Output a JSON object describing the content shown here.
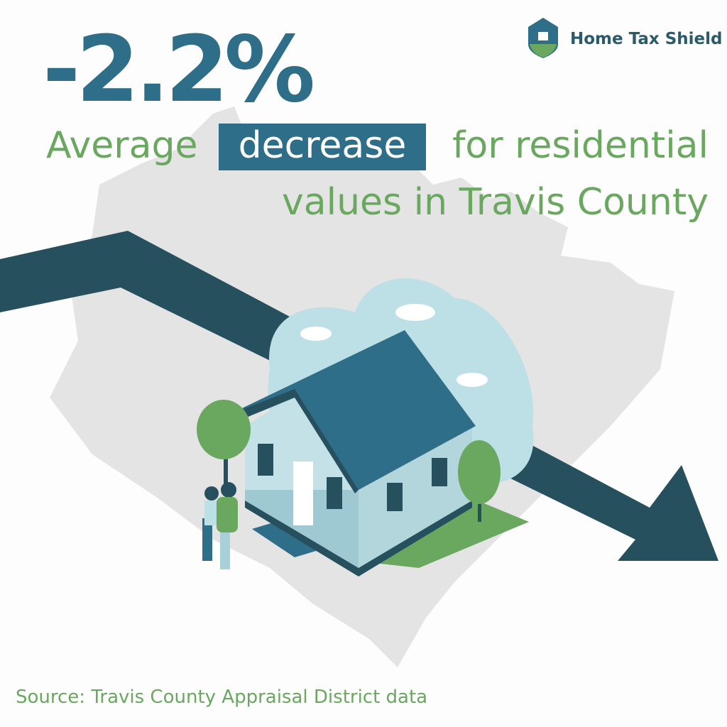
{
  "headline": "-2.2%",
  "subtitle": {
    "line1_before": "Average",
    "highlight": "decrease",
    "line1_after": "for residential",
    "line2": "values in Travis County"
  },
  "brand": "Home Tax Shield",
  "source": "Source: Travis County Appraisal District data"
}
